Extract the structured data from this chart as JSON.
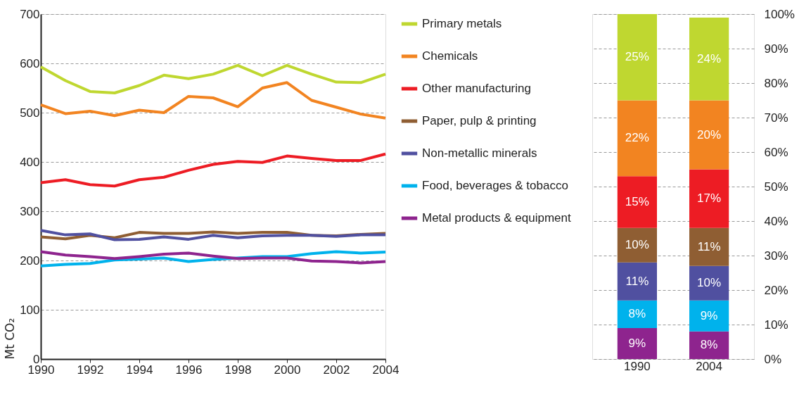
{
  "chart_data": [
    {
      "type": "line",
      "ylabel": "Mt CO₂",
      "x": [
        1990,
        1991,
        1992,
        1993,
        1994,
        1995,
        1996,
        1997,
        1998,
        1999,
        2000,
        2001,
        2002,
        2003,
        2004
      ],
      "xlim": [
        1990,
        2004
      ],
      "xticks": [
        1990,
        1992,
        1994,
        1996,
        1998,
        2000,
        2002,
        2004
      ],
      "ylim": [
        0,
        700
      ],
      "yticks": [
        0,
        100,
        200,
        300,
        400,
        500,
        600,
        700
      ],
      "grid": "y",
      "legend": "right",
      "line_style": "solid",
      "marker": "none",
      "series": [
        {
          "name": "Primary metals",
          "color": "#bfd730",
          "values": [
            593,
            565,
            543,
            540,
            555,
            576,
            569,
            578,
            596,
            575,
            596,
            578,
            562,
            561,
            578
          ]
        },
        {
          "name": "Chemicals",
          "color": "#f28421",
          "values": [
            516,
            498,
            503,
            494,
            505,
            500,
            533,
            530,
            512,
            550,
            561,
            525,
            511,
            497,
            489
          ]
        },
        {
          "name": "Other manufacturing",
          "color": "#ed1c24",
          "values": [
            358,
            364,
            354,
            351,
            364,
            369,
            383,
            395,
            401,
            399,
            412,
            407,
            403,
            403,
            416
          ]
        },
        {
          "name": "Paper, pulp & printing",
          "color": "#8f5e33",
          "values": [
            248,
            244,
            251,
            246,
            257,
            255,
            255,
            258,
            255,
            257,
            257,
            251,
            250,
            253,
            255
          ]
        },
        {
          "name": "Non-metallic minerals",
          "color": "#5050a0",
          "values": [
            261,
            252,
            254,
            242,
            243,
            248,
            243,
            251,
            246,
            250,
            251,
            251,
            249,
            252,
            252
          ]
        },
        {
          "name": "Food, beverages & tobacco",
          "color": "#00b2ec",
          "values": [
            189,
            192,
            194,
            201,
            203,
            205,
            198,
            202,
            205,
            208,
            208,
            214,
            218,
            215,
            217
          ]
        },
        {
          "name": "Metal products & equipment",
          "color": "#8e248e",
          "values": [
            218,
            211,
            208,
            204,
            208,
            213,
            215,
            209,
            204,
            205,
            205,
            199,
            198,
            195,
            198
          ]
        }
      ]
    },
    {
      "type": "bar",
      "stacked": true,
      "categories": [
        "1990",
        "2004"
      ],
      "ylim": [
        0,
        100
      ],
      "grid": "y",
      "yticks": [
        {
          "value": 0,
          "label": "0%"
        },
        {
          "value": 10,
          "label": "10%"
        },
        {
          "value": 20,
          "label": "20%"
        },
        {
          "value": 30,
          "label": "30%"
        },
        {
          "value": 40,
          "label": "40%"
        },
        {
          "value": 50,
          "label": "50%"
        },
        {
          "value": 60,
          "label": "60%"
        },
        {
          "value": 70,
          "label": "70%"
        },
        {
          "value": 80,
          "label": "80%"
        },
        {
          "value": 90,
          "label": "90%"
        },
        {
          "value": 100,
          "label": "100%"
        }
      ],
      "series": [
        {
          "color": "#8e248e",
          "values": [
            9,
            8
          ],
          "value_labels": [
            "9%",
            "8%"
          ]
        },
        {
          "color": "#00b2ec",
          "values": [
            8,
            9
          ],
          "value_labels": [
            "8%",
            "9%"
          ]
        },
        {
          "color": "#5050a0",
          "values": [
            11,
            10
          ],
          "value_labels": [
            "11%",
            "10%"
          ]
        },
        {
          "color": "#8f5e33",
          "values": [
            10,
            11
          ],
          "value_labels": [
            "10%",
            "11%"
          ]
        },
        {
          "color": "#ed1c24",
          "values": [
            15,
            17
          ],
          "value_labels": [
            "15%",
            "17%"
          ]
        },
        {
          "color": "#f28421",
          "values": [
            22,
            20
          ],
          "value_labels": [
            "22%",
            "20%"
          ]
        },
        {
          "color": "#bfd730",
          "values": [
            25,
            24
          ],
          "value_labels": [
            "25%",
            "24%"
          ]
        }
      ]
    }
  ]
}
